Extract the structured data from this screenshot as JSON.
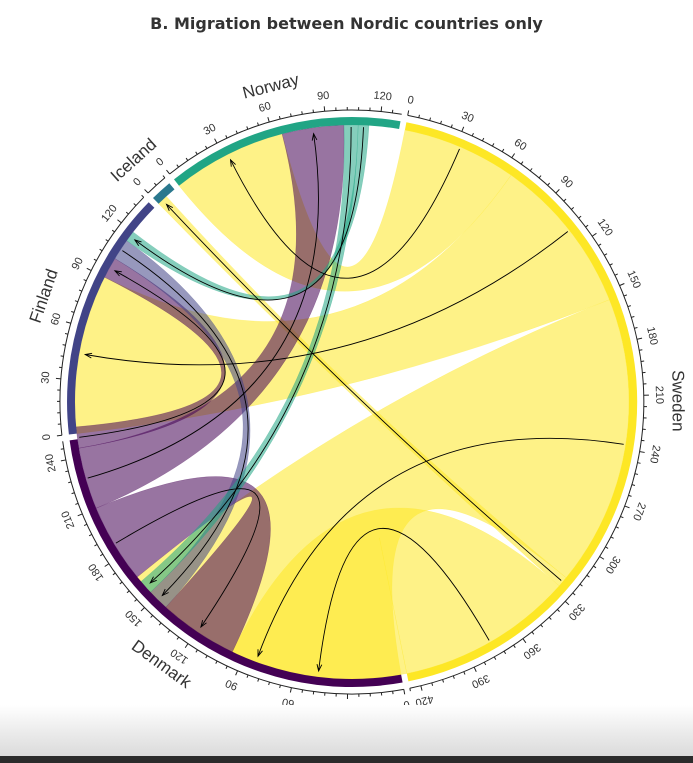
{
  "title": "B. Migration between Nordic countries only",
  "colors": {
    "Sweden": "#fde725",
    "Norway": "#21a585",
    "Iceland": "#2a788e",
    "Finland": "#414487",
    "Denmark": "#440154",
    "outer_ring": "#f5e000"
  },
  "chart_data": {
    "type": "chord",
    "title": "B. Migration between Nordic countries only",
    "sectors": [
      {
        "name": "Sweden",
        "total": 426,
        "ticks": [
          0,
          30,
          60,
          90,
          120,
          150,
          180,
          210,
          240,
          270,
          300,
          330,
          360,
          390,
          420
        ]
      },
      {
        "name": "Denmark",
        "total": 250,
        "ticks": [
          0,
          30,
          60,
          90,
          120,
          150,
          180,
          210,
          240
        ]
      },
      {
        "name": "Finland",
        "total": 138,
        "ticks": [
          0,
          30,
          60,
          90,
          120
        ]
      },
      {
        "name": "Iceland",
        "total": 12,
        "ticks": [
          0
        ]
      },
      {
        "name": "Norway",
        "total": 131,
        "ticks": [
          0,
          30,
          60,
          90,
          120
        ]
      }
    ],
    "flows": [
      {
        "from": "Sweden",
        "to": "Norway",
        "value": 65
      },
      {
        "from": "Sweden",
        "to": "Finland",
        "value": 90
      },
      {
        "from": "Sweden",
        "to": "Denmark",
        "value": 165
      },
      {
        "from": "Sweden",
        "to": "Iceland",
        "value": 6
      },
      {
        "from": "Sweden",
        "to": "Sweden",
        "value": 100
      },
      {
        "from": "Denmark",
        "to": "Sweden",
        "value": 45
      },
      {
        "from": "Denmark",
        "to": "Norway",
        "value": 35
      },
      {
        "from": "Denmark",
        "to": "Finland",
        "value": 12
      },
      {
        "from": "Finland",
        "to": "Sweden",
        "value": 12
      },
      {
        "from": "Norway",
        "to": "Sweden",
        "value": 8
      },
      {
        "from": "Norway",
        "to": "Finland",
        "value": 6
      }
    ]
  }
}
